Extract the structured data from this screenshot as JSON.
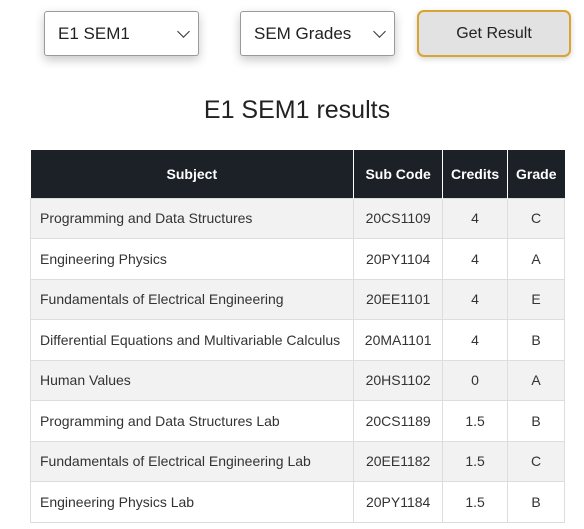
{
  "controls": {
    "semester_select": {
      "selected": "E1 SEM1"
    },
    "type_select": {
      "selected": "SEM Grades"
    },
    "get_result_label": "Get Result"
  },
  "results": {
    "title": "E1 SEM1 results",
    "columns": {
      "subject": "Subject",
      "sub_code": "Sub Code",
      "credits": "Credits",
      "grade": "Grade"
    },
    "rows": [
      {
        "subject": "Programming and Data Structures",
        "sub_code": "20CS1109",
        "credits": "4",
        "grade": "C"
      },
      {
        "subject": "Engineering Physics",
        "sub_code": "20PY1104",
        "credits": "4",
        "grade": "A"
      },
      {
        "subject": "Fundamentals of Electrical Engineering",
        "sub_code": "20EE1101",
        "credits": "4",
        "grade": "E"
      },
      {
        "subject": "Differential Equations and Multivariable Calculus",
        "sub_code": "20MA1101",
        "credits": "4",
        "grade": "B"
      },
      {
        "subject": "Human Values",
        "sub_code": "20HS1102",
        "credits": "0",
        "grade": "A"
      },
      {
        "subject": "Programming and Data Structures Lab",
        "sub_code": "20CS1189",
        "credits": "1.5",
        "grade": "B"
      },
      {
        "subject": "Fundamentals of Electrical Engineering Lab",
        "sub_code": "20EE1182",
        "credits": "1.5",
        "grade": "C"
      },
      {
        "subject": "Engineering Physics Lab",
        "sub_code": "20PY1184",
        "credits": "1.5",
        "grade": "B"
      }
    ]
  }
}
